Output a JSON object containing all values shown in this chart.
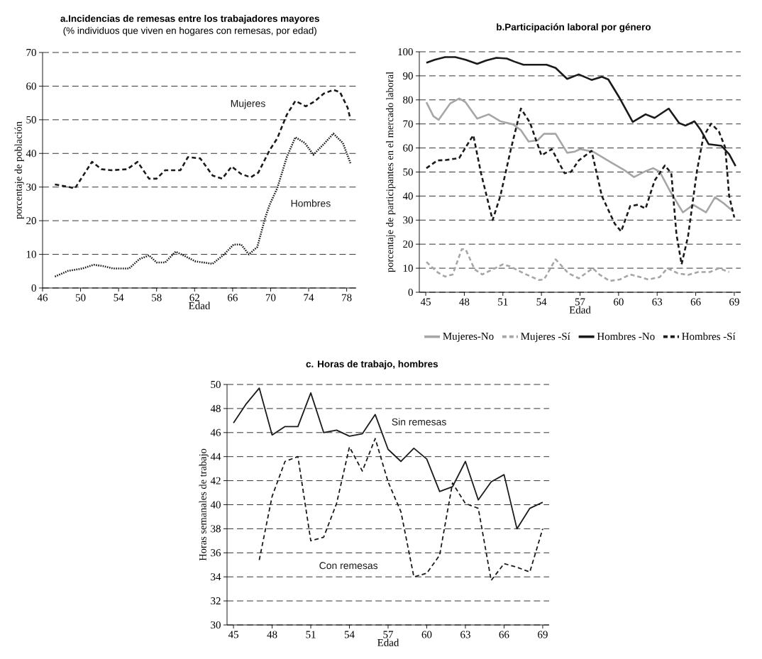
{
  "chart_data": [
    {
      "type": "line",
      "title": "a.Incidencias de remesas entre los trabajadores mayores",
      "subtitle": "(% individuos que viven en hogares con remesas, por edad)",
      "xlabel": "Edad",
      "ylabel": "porcentaje de población",
      "xlim": [
        46,
        79
      ],
      "ylim": [
        0,
        70
      ],
      "xticks": [
        46,
        50,
        54,
        58,
        62,
        66,
        70,
        74,
        78
      ],
      "yticks": [
        0,
        10,
        20,
        30,
        40,
        50,
        60,
        70
      ],
      "grid": "y",
      "series": [
        {
          "name": "Mujeres",
          "color": "#1a1a1a",
          "line_style": "dashed",
          "x": [
            47.3,
            48.7,
            49.4,
            51.2,
            52.2,
            53.2,
            54.9,
            56.0,
            57.2,
            58.0,
            58.9,
            60.5,
            61.3,
            62.6,
            63.9,
            64.9,
            65.9,
            66.9,
            67.9,
            68.7,
            69.9,
            70.7,
            71.7,
            72.6,
            73.7,
            74.6,
            75.6,
            76.6,
            77.3,
            78.1,
            78.4
          ],
          "values": [
            30.8,
            30.1,
            29.6,
            37.5,
            35.3,
            35.0,
            35.3,
            37.5,
            32.5,
            32.5,
            35.0,
            35.0,
            38.9,
            38.5,
            33.4,
            32.5,
            36.1,
            33.9,
            32.9,
            34.3,
            41.0,
            44.5,
            51.5,
            55.6,
            54.0,
            55.4,
            57.8,
            58.9,
            58.2,
            53.6,
            50.1
          ]
        },
        {
          "name": "Hombres",
          "color": "#1a1a1a",
          "line_style": "dotted",
          "x": [
            47.3,
            48.7,
            50.2,
            51.4,
            52.4,
            53.4,
            55.1,
            56.2,
            57.2,
            58.0,
            58.9,
            60.0,
            61.1,
            62.1,
            63.9,
            65.1,
            66.1,
            66.9,
            67.7,
            68.6,
            69.4,
            69.9,
            70.7,
            71.7,
            72.6,
            73.6,
            74.5,
            75.7,
            76.6,
            77.6,
            78.4
          ],
          "values": [
            3.4,
            5.1,
            5.8,
            6.9,
            6.5,
            5.8,
            5.8,
            8.6,
            9.7,
            7.6,
            7.6,
            10.8,
            9.3,
            7.9,
            7.2,
            10.0,
            12.9,
            12.9,
            10.0,
            12.2,
            20.6,
            24.8,
            29.7,
            38.9,
            44.8,
            43.1,
            39.6,
            43.1,
            45.9,
            43.1,
            37.1
          ]
        }
      ]
    },
    {
      "type": "line",
      "title": "b.Participación laboral por género",
      "xlabel": "Edad",
      "ylabel": "porcentaje de participantes en el mercado laboral",
      "xlim": [
        44.5,
        69.5
      ],
      "ylim": [
        0,
        100
      ],
      "xticks": [
        45,
        48,
        51,
        54,
        57,
        60,
        63,
        66,
        69
      ],
      "yticks": [
        0,
        10,
        20,
        30,
        40,
        50,
        60,
        70,
        80,
        90,
        100
      ],
      "grid": "y",
      "legend": "bottom",
      "series": [
        {
          "name": "Mujeres-No",
          "color": "#a6a6a6",
          "line_style": "solid",
          "x": [
            45.05,
            45.6,
            46.0,
            46.9,
            47.6,
            48.1,
            49.0,
            49.9,
            50.8,
            51.8,
            52.4,
            53.0,
            53.7,
            54.2,
            55.1,
            56.0,
            56.6,
            57.0,
            58.0,
            59.5,
            60.5,
            61.2,
            62.0,
            62.7,
            63.2,
            64.0,
            65.0,
            65.8,
            66.8,
            67.5,
            68.2,
            68.9
          ],
          "values": [
            79.0,
            73.2,
            71.7,
            78.5,
            80.6,
            79.0,
            72.2,
            74.0,
            71.1,
            69.8,
            67.4,
            62.7,
            63.2,
            65.9,
            65.9,
            58.0,
            58.5,
            59.5,
            58.5,
            53.7,
            50.6,
            47.9,
            50.1,
            51.6,
            50.1,
            42.1,
            33.2,
            36.4,
            33.2,
            39.5,
            36.9,
            33.7
          ]
        },
        {
          "name": "Mujeres -Sí",
          "color": "#a6a6a6",
          "line_style": "dashed",
          "x": [
            45.05,
            45.9,
            46.5,
            47.1,
            47.8,
            48.1,
            48.8,
            49.4,
            50.4,
            51.0,
            51.6,
            52.6,
            53.8,
            54.2,
            55.1,
            56.1,
            56.9,
            58.0,
            58.5,
            59.3,
            60.1,
            60.9,
            61.7,
            62.3,
            63.2,
            63.8,
            64.6,
            65.4,
            66.2,
            67.1,
            67.8,
            68.6
          ],
          "values": [
            12.6,
            8.4,
            6.5,
            7.4,
            17.9,
            17.9,
            9.5,
            7.4,
            10.0,
            11.6,
            10.7,
            7.9,
            5.1,
            5.3,
            13.7,
            7.9,
            5.8,
            10.0,
            7.4,
            4.7,
            5.3,
            7.4,
            6.3,
            5.3,
            6.3,
            10.0,
            7.9,
            7.2,
            8.4,
            8.4,
            10.0,
            8.4
          ]
        },
        {
          "name": "Hombres -No",
          "color": "#1a1a1a",
          "line_style": "solid",
          "x": [
            45.05,
            45.7,
            46.5,
            47.3,
            48.1,
            49.0,
            49.7,
            50.5,
            51.3,
            51.9,
            52.6,
            54.4,
            55.1,
            56.0,
            56.9,
            57.9,
            58.7,
            59.2,
            60.1,
            61.1,
            62.1,
            62.8,
            63.9,
            64.7,
            65.2,
            65.9,
            66.4,
            67.0,
            68.0,
            68.6,
            69.1
          ],
          "values": [
            95.4,
            96.7,
            97.8,
            97.8,
            96.7,
            95.0,
            96.4,
            97.5,
            97.2,
            95.9,
            94.6,
            94.6,
            93.3,
            88.7,
            90.6,
            88.3,
            89.6,
            88.5,
            80.6,
            70.8,
            74.0,
            72.5,
            76.4,
            70.4,
            69.3,
            71.1,
            67.4,
            61.6,
            60.9,
            57.4,
            52.5
          ]
        },
        {
          "name": "Hombres -Sí",
          "color": "#1a1a1a",
          "line_style": "dashed",
          "x": [
            45.05,
            45.9,
            46.6,
            47.6,
            48.2,
            48.7,
            49.3,
            50.2,
            50.8,
            51.6,
            52.4,
            53.1,
            54.0,
            54.8,
            55.8,
            56.3,
            56.9,
            57.9,
            58.7,
            59.7,
            60.2,
            60.9,
            61.5,
            62.1,
            62.8,
            63.6,
            64.1,
            64.5,
            64.9,
            65.4,
            66.1,
            66.6,
            67.2,
            67.8,
            68.3,
            68.6,
            69.0
          ],
          "values": [
            51.6,
            54.8,
            55.0,
            55.8,
            61.1,
            65.3,
            49.5,
            30.0,
            40.0,
            59.0,
            76.4,
            70.6,
            56.9,
            59.5,
            49.5,
            50.1,
            54.8,
            58.8,
            40.0,
            28.5,
            25.3,
            35.8,
            36.4,
            34.8,
            46.4,
            52.7,
            49.5,
            24.2,
            11.6,
            23.2,
            50.6,
            64.8,
            70.1,
            66.9,
            60.1,
            40.0,
            31.1
          ]
        }
      ]
    },
    {
      "type": "line",
      "title": "c. Horas de trabajo, hombres",
      "xlabel": "Edad",
      "ylabel": "Horas semanales de trabajo",
      "xlim": [
        44.5,
        69.5
      ],
      "ylim": [
        30,
        50
      ],
      "xticks": [
        45,
        48,
        51,
        54,
        57,
        60,
        63,
        66,
        69
      ],
      "yticks": [
        30,
        32,
        34,
        36,
        38,
        40,
        42,
        44,
        46,
        48,
        50
      ],
      "grid": "y",
      "x": [
        45,
        46,
        47,
        48,
        49,
        50,
        51,
        52,
        53,
        54,
        55,
        56,
        57,
        58,
        59,
        60,
        61,
        62,
        63,
        64,
        65,
        66,
        67,
        68,
        69
      ],
      "series": [
        {
          "name": "Sin remesas",
          "color": "#1a1a1a",
          "line_style": "solid",
          "values": [
            46.8,
            48.4,
            49.7,
            45.8,
            46.5,
            46.5,
            49.3,
            46.0,
            46.2,
            45.7,
            45.9,
            47.5,
            44.6,
            43.6,
            44.7,
            43.8,
            41.1,
            41.5,
            43.6,
            40.4,
            41.9,
            42.5,
            38.0,
            39.7,
            40.2
          ]
        },
        {
          "name": "Con remesas",
          "color": "#1a1a1a",
          "line_style": "dashed",
          "values": [
            null,
            null,
            35.4,
            40.7,
            43.6,
            44.0,
            37.0,
            37.3,
            40.1,
            44.8,
            42.8,
            45.5,
            41.9,
            39.4,
            34.0,
            34.3,
            35.8,
            41.8,
            40.1,
            39.7,
            33.7,
            35.1,
            34.8,
            34.4,
            38.0
          ]
        }
      ]
    }
  ]
}
